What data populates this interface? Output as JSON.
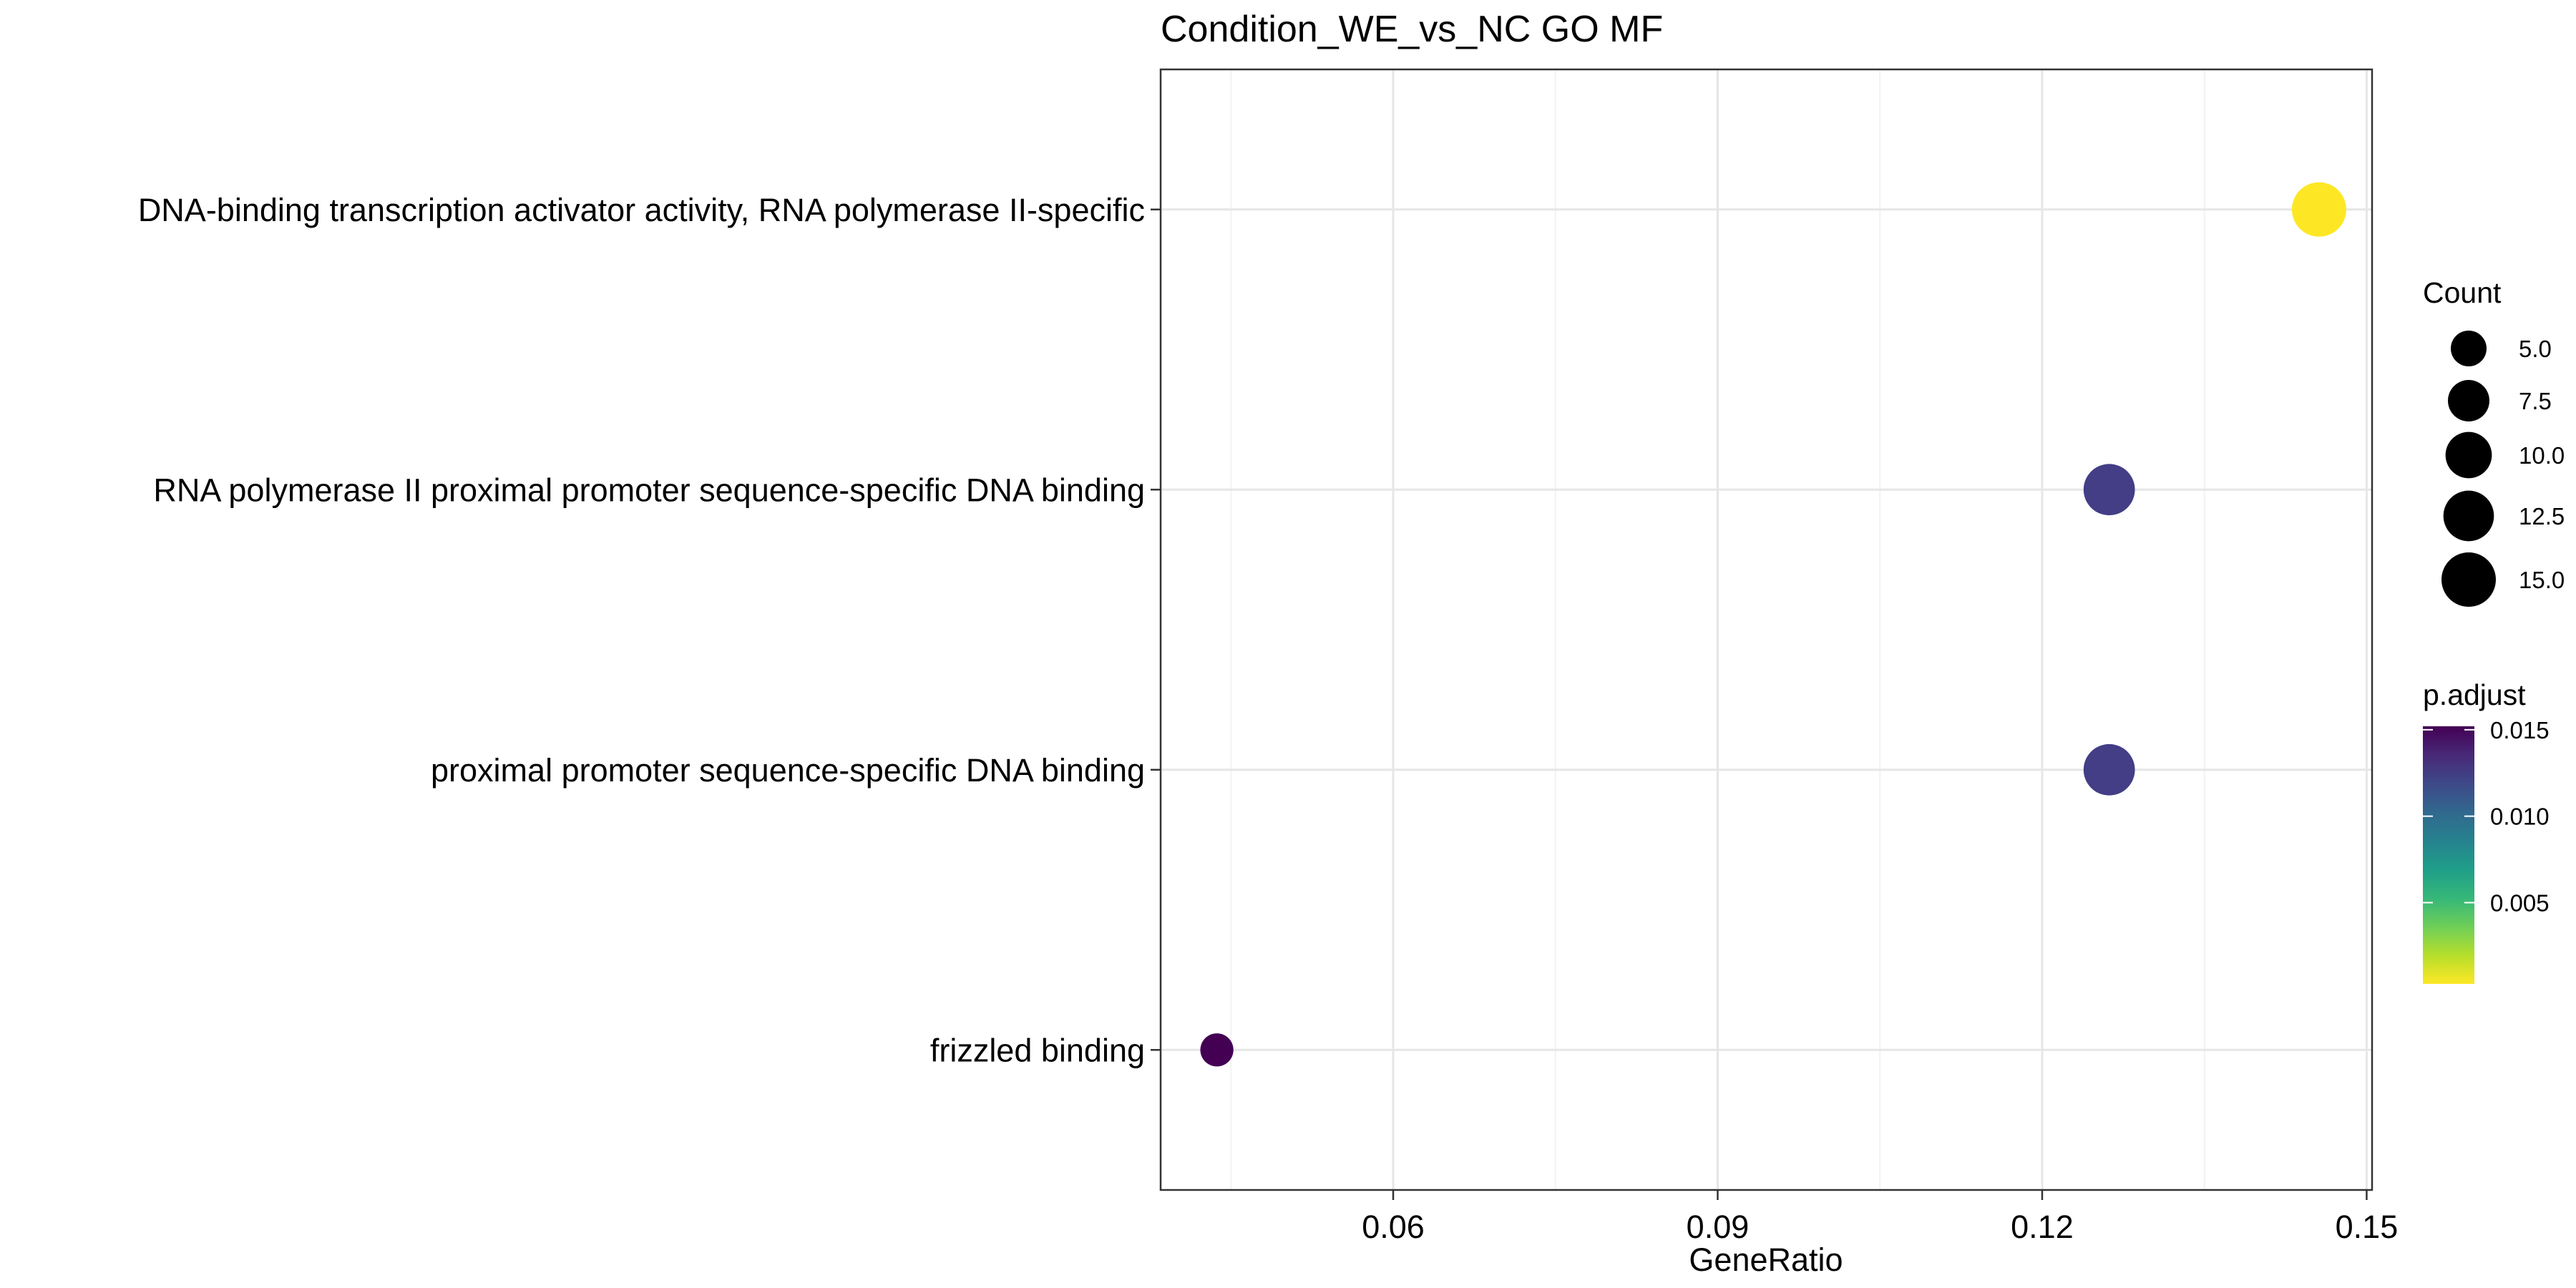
{
  "chart_data": {
    "type": "scatter",
    "title": "Condition_WE_vs_NC GO MF",
    "xlabel": "GeneRatio",
    "ylabel": "",
    "xlim": [
      0.0385,
      0.1505
    ],
    "x_ticks": [
      0.06,
      0.09,
      0.12,
      0.15
    ],
    "x_tick_labels": [
      "0.06",
      "0.09",
      "0.12",
      "0.15"
    ],
    "categories": [
      "DNA-binding transcription activator activity, RNA polymerase II-specific",
      "RNA polymerase II proximal promoter sequence-specific DNA binding",
      "proximal promoter sequence-specific DNA binding",
      "frizzled binding"
    ],
    "points": [
      {
        "term": "DNA-binding transcription activator activity, RNA polymerase II-specific",
        "gene_ratio": 0.1456,
        "count": 15,
        "p_adjust": 0.0004,
        "color": "#fde725"
      },
      {
        "term": "RNA polymerase II proximal promoter sequence-specific DNA binding",
        "gene_ratio": 0.1262,
        "count": 13,
        "p_adjust": 0.0138,
        "color": "#433e85"
      },
      {
        "term": "proximal promoter sequence-specific DNA binding",
        "gene_ratio": 0.1262,
        "count": 13,
        "p_adjust": 0.0138,
        "color": "#433e85"
      },
      {
        "term": "frizzled binding",
        "gene_ratio": 0.0437,
        "count": 4,
        "p_adjust": 0.0152,
        "color": "#440154"
      }
    ],
    "size_legend": {
      "title": "Count",
      "values": [
        5.0,
        7.5,
        10.0,
        12.5,
        15.0
      ],
      "labels": [
        "5.0",
        "7.5",
        "10.0",
        "12.5",
        "15.0"
      ]
    },
    "color_legend": {
      "title": "p.adjust",
      "range": [
        0.0003,
        0.0152
      ],
      "ticks": [
        0.015,
        0.01,
        0.005
      ],
      "tick_labels": [
        "0.015",
        "0.010",
        "0.005"
      ],
      "palette": [
        "#fde725",
        "#b5de2b",
        "#6ece58",
        "#35b779",
        "#1f9e89",
        "#26828e",
        "#31688e",
        "#3e4989",
        "#482878",
        "#440154"
      ],
      "high_color": "#440154",
      "low_color": "#fde725"
    },
    "grid": true,
    "legend_position": "right"
  }
}
